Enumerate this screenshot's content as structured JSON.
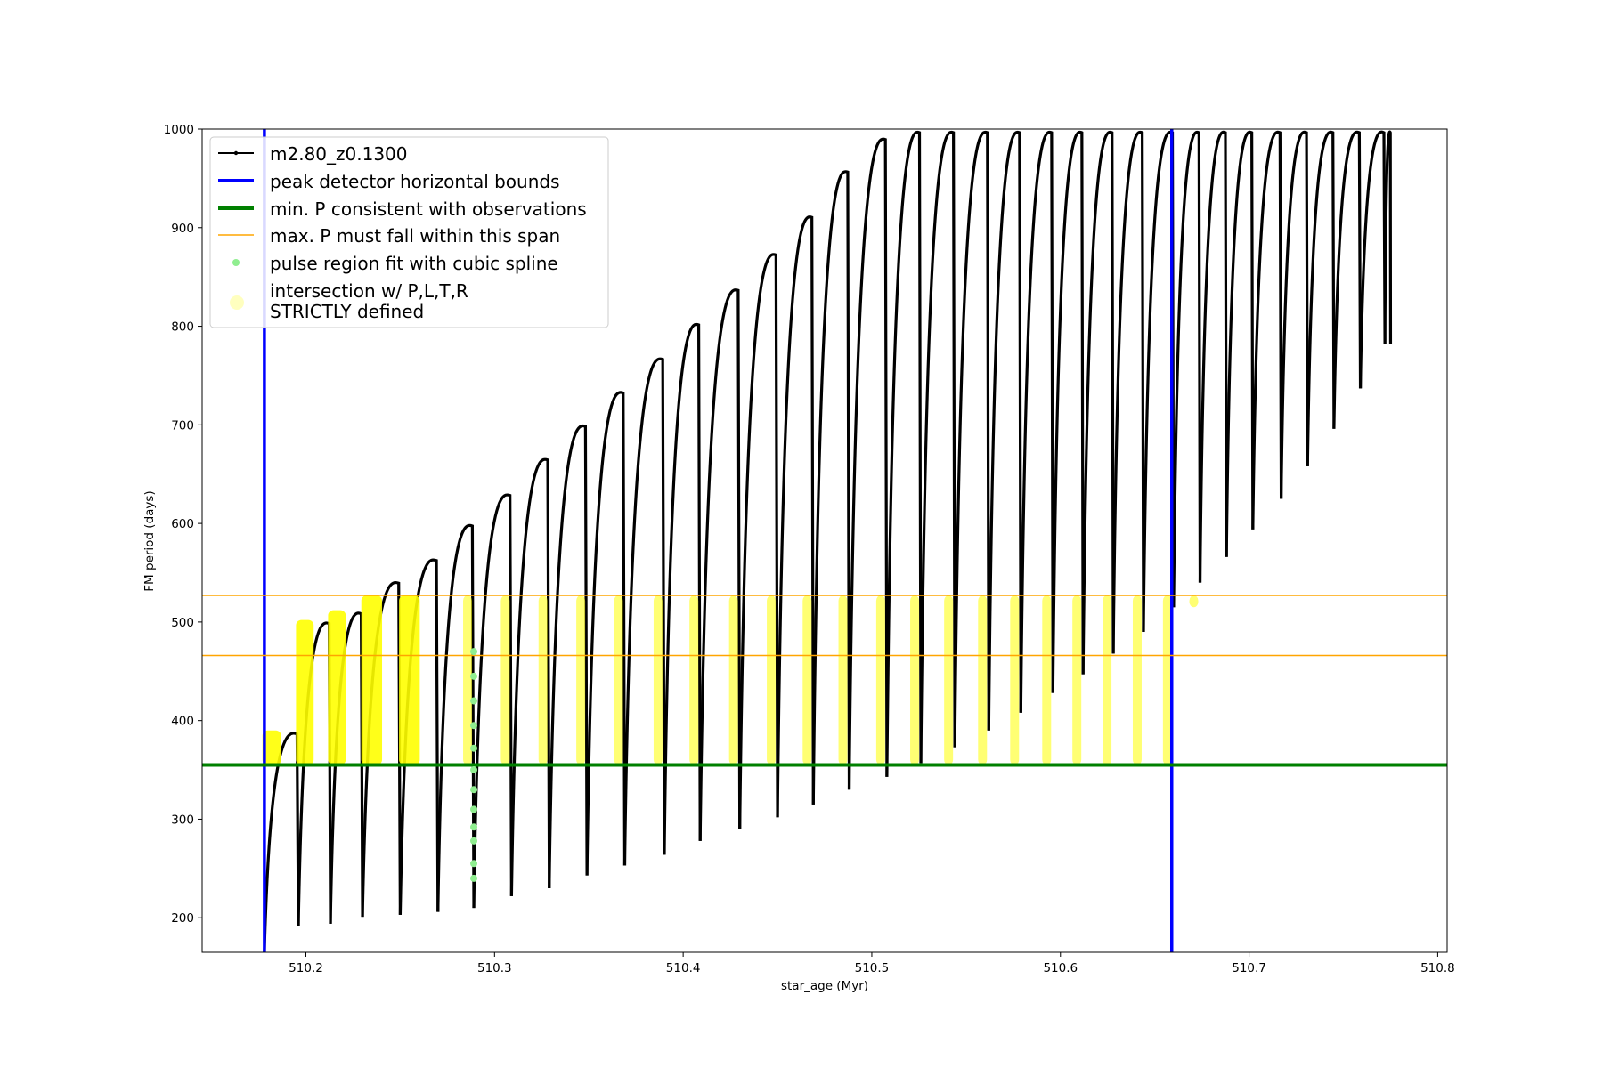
{
  "chart_data": {
    "type": "line",
    "title": "",
    "xlabel": "star_age (Myr)",
    "ylabel": "FM period (days)",
    "xlim": [
      510.145,
      510.805
    ],
    "ylim": [
      165,
      1000
    ],
    "xticks": [
      "510.2",
      "510.3",
      "510.4",
      "510.5",
      "510.6",
      "510.7",
      "510.8"
    ],
    "xtick_values": [
      510.2,
      510.3,
      510.4,
      510.5,
      510.6,
      510.7,
      510.8
    ],
    "yticks": [
      "200",
      "300",
      "400",
      "500",
      "600",
      "700",
      "800",
      "900",
      "1000"
    ],
    "ytick_values": [
      200,
      300,
      400,
      500,
      600,
      700,
      800,
      900,
      1000
    ],
    "grid": false,
    "legend_position": "upper-left",
    "legend": [
      {
        "label": "m2.80_z0.1300",
        "style": "black-line-dot"
      },
      {
        "label": "peak detector horizontal bounds",
        "style": "blue-line"
      },
      {
        "label": "min. P consistent with observations",
        "style": "green-line"
      },
      {
        "label": "max. P must fall within this span",
        "style": "orange-line"
      },
      {
        "label": "pulse region fit with cubic spline",
        "style": "lightgreen-dot"
      },
      {
        "label": "intersection w/ P,L,T,R\nSTRICTLY defined",
        "style": "yellow-dot"
      }
    ],
    "vertical_lines": {
      "color": "#0000ff",
      "x": [
        510.178,
        510.659
      ]
    },
    "min_period_line": {
      "color": "#008000",
      "y": 355
    },
    "max_period_span": {
      "color": "#ffa500",
      "y": [
        466,
        527
      ]
    },
    "band": {
      "min_p": 355,
      "max_p": 527
    },
    "pulses": [
      {
        "t": 510.178,
        "min": 165,
        "max": 390
      },
      {
        "t": 510.196,
        "min": 192,
        "max": 502
      },
      {
        "t": 510.213,
        "min": 194,
        "max": 512
      },
      {
        "t": 510.23,
        "min": 201,
        "max": 543
      },
      {
        "t": 510.25,
        "min": 203,
        "max": 566
      },
      {
        "t": 510.27,
        "min": 206,
        "max": 601
      },
      {
        "t": 510.289,
        "min": 210,
        "max": 632
      },
      {
        "t": 510.309,
        "min": 222,
        "max": 668
      },
      {
        "t": 510.329,
        "min": 230,
        "max": 702
      },
      {
        "t": 510.349,
        "min": 243,
        "max": 736
      },
      {
        "t": 510.369,
        "min": 253,
        "max": 770
      },
      {
        "t": 510.39,
        "min": 264,
        "max": 805
      },
      {
        "t": 510.409,
        "min": 278,
        "max": 840
      },
      {
        "t": 510.43,
        "min": 290,
        "max": 876
      },
      {
        "t": 510.45,
        "min": 302,
        "max": 914
      },
      {
        "t": 510.469,
        "min": 315,
        "max": 960
      },
      {
        "t": 510.488,
        "min": 330,
        "max": 993
      },
      {
        "t": 510.508,
        "min": 343,
        "max": 1000
      },
      {
        "t": 510.526,
        "min": 357,
        "max": 1000
      },
      {
        "t": 510.544,
        "min": 373,
        "max": 1000
      },
      {
        "t": 510.562,
        "min": 390,
        "max": 1000
      },
      {
        "t": 510.579,
        "min": 408,
        "max": 1000
      },
      {
        "t": 510.596,
        "min": 428,
        "max": 1000
      },
      {
        "t": 510.612,
        "min": 447,
        "max": 1000
      },
      {
        "t": 510.628,
        "min": 468,
        "max": 1000
      },
      {
        "t": 510.644,
        "min": 490,
        "max": 1000
      },
      {
        "t": 510.66,
        "min": 515,
        "max": 1000
      },
      {
        "t": 510.674,
        "min": 540,
        "max": 1000
      },
      {
        "t": 510.688,
        "min": 566,
        "max": 1000
      },
      {
        "t": 510.702,
        "min": 594,
        "max": 1000
      },
      {
        "t": 510.717,
        "min": 625,
        "max": 1000
      },
      {
        "t": 510.731,
        "min": 658,
        "max": 1000
      },
      {
        "t": 510.745,
        "min": 696,
        "max": 1000
      },
      {
        "t": 510.759,
        "min": 737,
        "max": 1000
      },
      {
        "t": 510.772,
        "min": 782,
        "max": 1000
      }
    ],
    "cubic_spline_points": [
      {
        "x": 510.289,
        "y": 240
      },
      {
        "x": 510.289,
        "y": 255
      },
      {
        "x": 510.289,
        "y": 278
      },
      {
        "x": 510.289,
        "y": 292
      },
      {
        "x": 510.289,
        "y": 310
      },
      {
        "x": 510.289,
        "y": 330
      },
      {
        "x": 510.289,
        "y": 350
      },
      {
        "x": 510.289,
        "y": 372
      },
      {
        "x": 510.289,
        "y": 395
      },
      {
        "x": 510.289,
        "y": 420
      },
      {
        "x": 510.289,
        "y": 445
      },
      {
        "x": 510.289,
        "y": 470
      }
    ]
  }
}
